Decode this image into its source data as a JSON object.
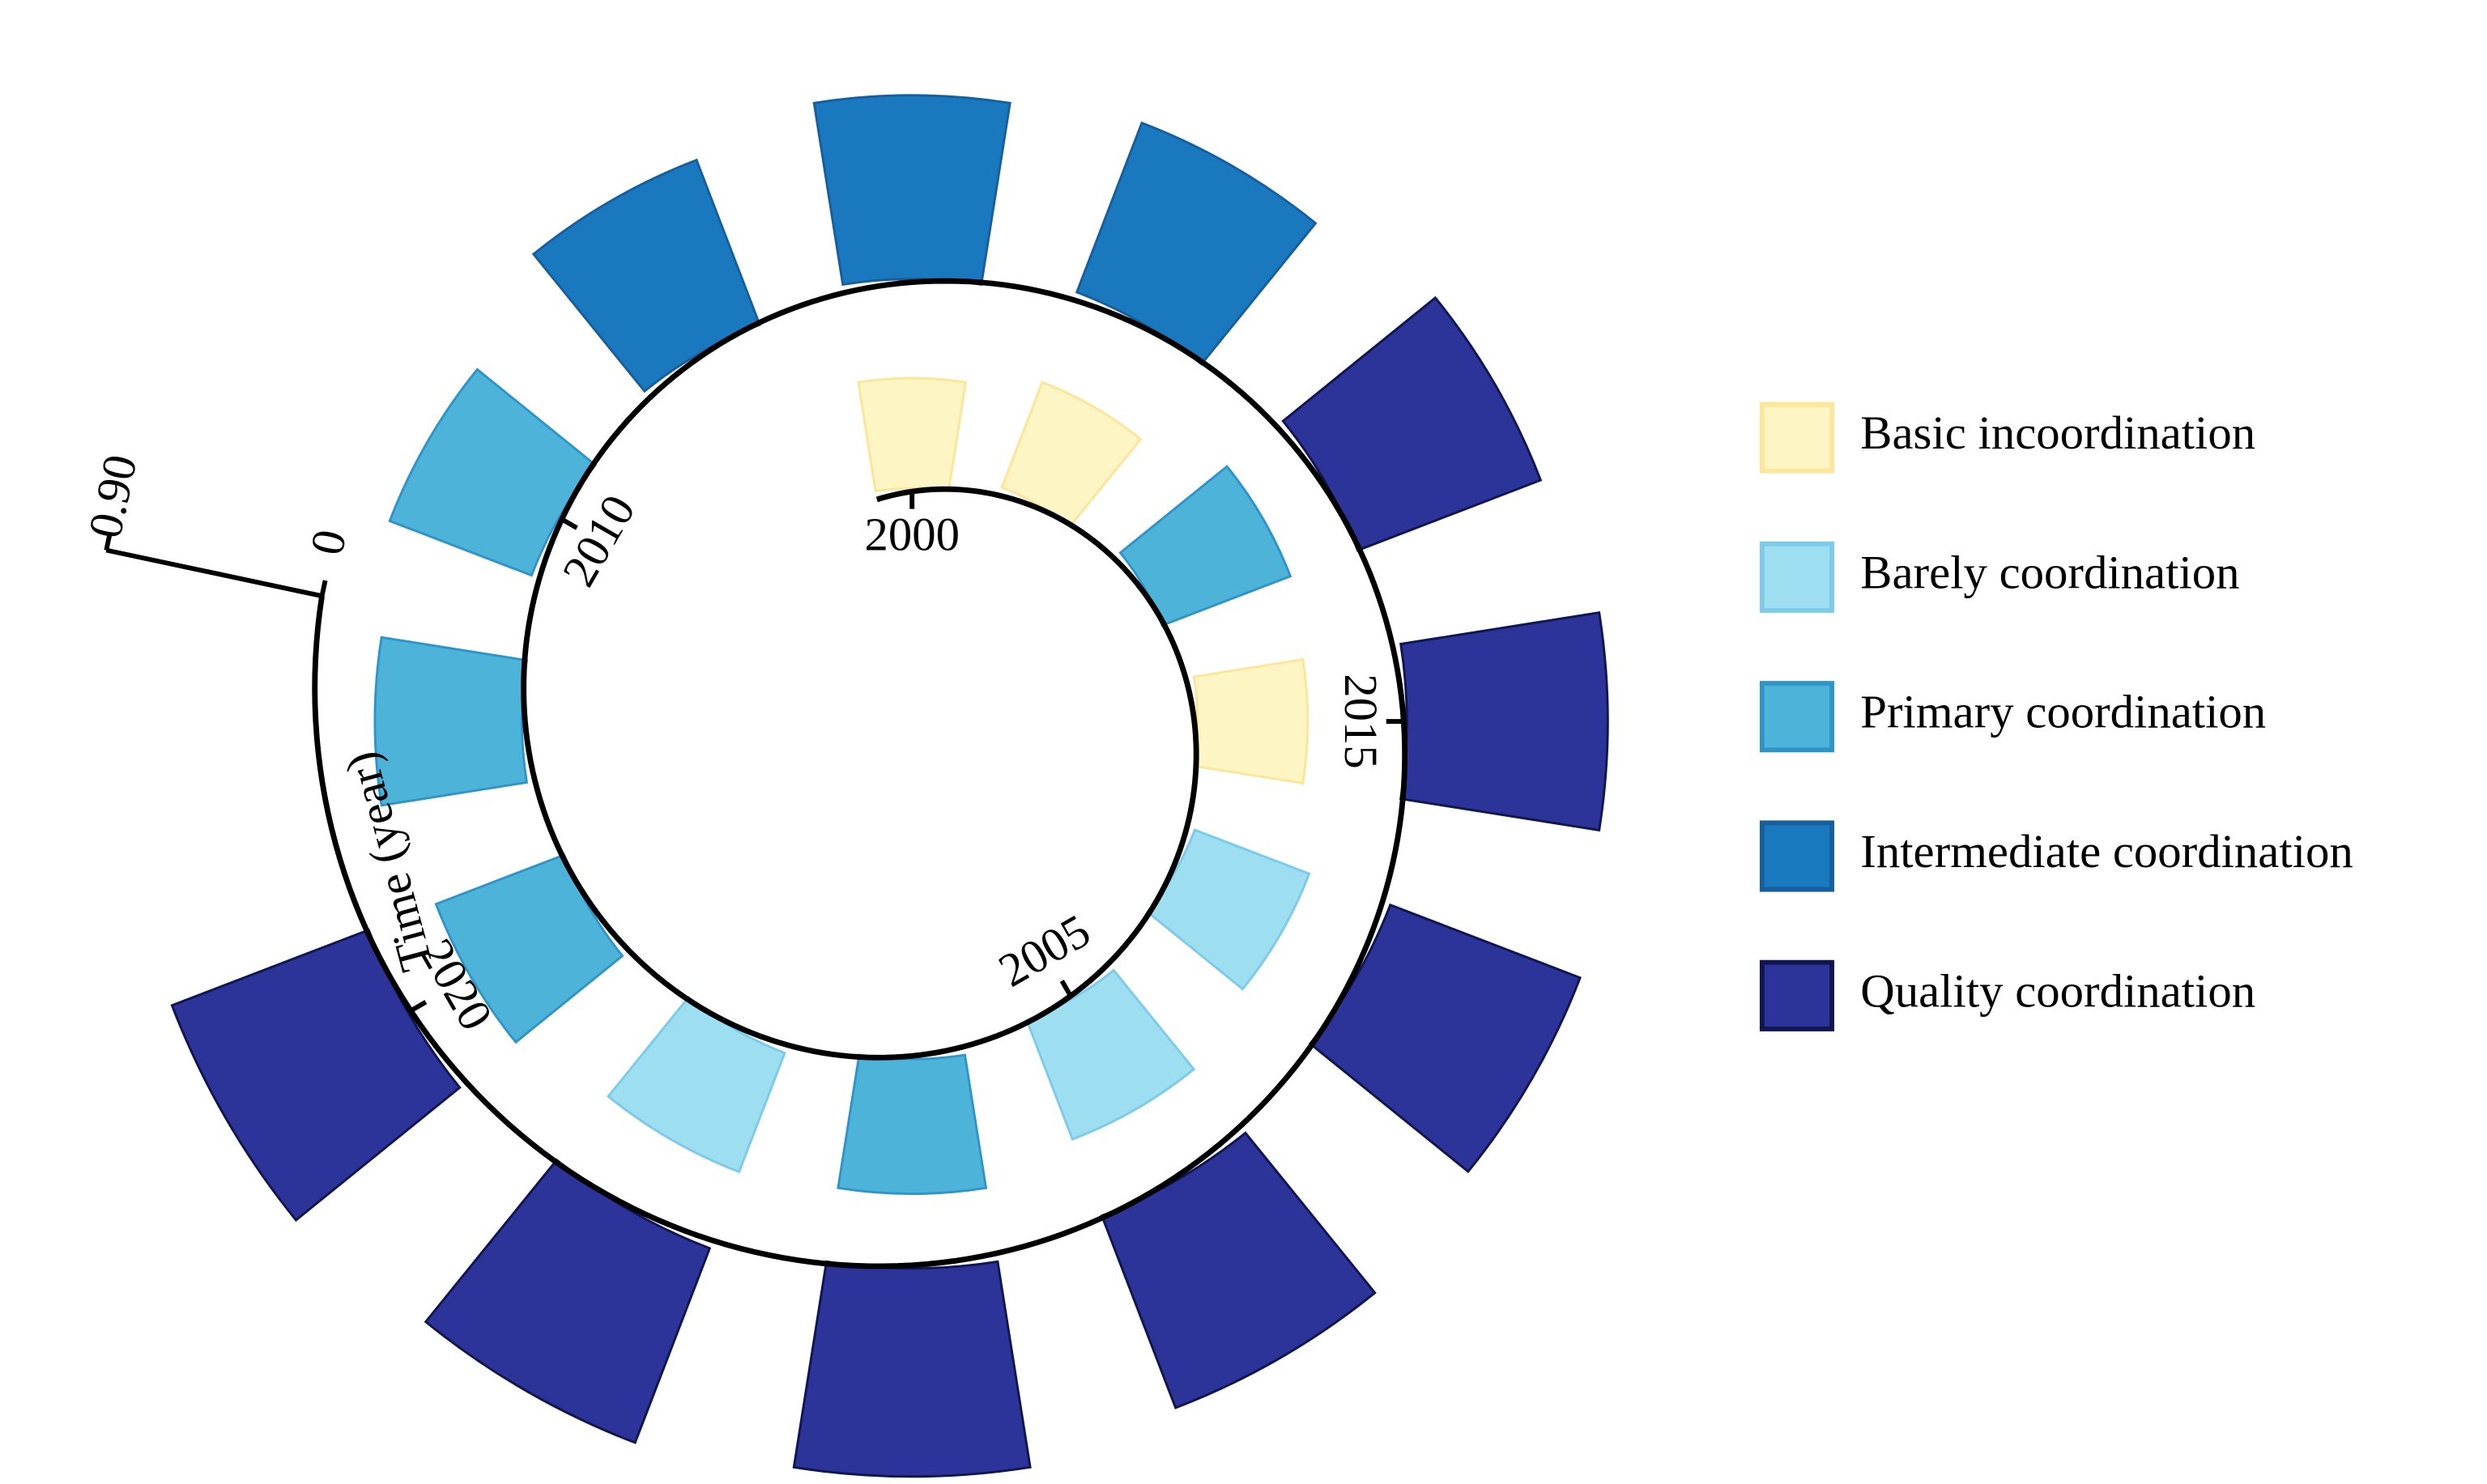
{
  "chart_data": {
    "type": "spiral-bar",
    "x": [
      2000,
      2001,
      2002,
      2003,
      2004,
      2005,
      2006,
      2007,
      2008,
      2009,
      2010,
      2011,
      2012,
      2013,
      2014,
      2015,
      2016,
      2017,
      2018,
      2019,
      2020
    ],
    "xticks": [
      2000,
      2005,
      2010,
      2015,
      2020
    ],
    "x_label": "Time (year)",
    "rlim": [
      0,
      0.9
    ],
    "rticks": [
      0,
      {
        "value": 0.9,
        "label": "0.90"
      }
    ],
    "series": [
      {
        "name": "Basic incoordination",
        "color": "#fdf5c4",
        "stroke": "#fde69a",
        "values": [
          0.45,
          0.46,
          null,
          0.45,
          null,
          null,
          null,
          null,
          null,
          null,
          null,
          null,
          null,
          null,
          null,
          null,
          null,
          null,
          null,
          null,
          null
        ]
      },
      {
        "name": "Barely coordination",
        "color": "#9ddff0",
        "stroke": "#7ccbea",
        "values": [
          null,
          null,
          null,
          null,
          0.5,
          0.52,
          null,
          0.52,
          null,
          null,
          null,
          null,
          null,
          null,
          null,
          null,
          null,
          null,
          null,
          null,
          null
        ]
      },
      {
        "name": "Primary coordination",
        "color": "#4eb3d9",
        "stroke": "#2f95c8",
        "values": [
          null,
          null,
          0.56,
          null,
          null,
          null,
          0.55,
          null,
          0.56,
          0.6,
          0.62,
          null,
          null,
          null,
          null,
          null,
          null,
          null,
          null,
          null,
          null
        ]
      },
      {
        "name": "Intermediate coordination",
        "color": "#1a79be",
        "stroke": "#155f9e",
        "values": [
          null,
          null,
          null,
          null,
          null,
          null,
          null,
          null,
          null,
          null,
          null,
          0.72,
          0.75,
          0.74,
          null,
          null,
          null,
          null,
          null,
          null,
          null
        ]
      },
      {
        "name": "Quality coordination",
        "color": "#2c3399",
        "stroke": "#10164f",
        "values": [
          null,
          null,
          null,
          null,
          null,
          null,
          null,
          null,
          null,
          null,
          null,
          null,
          null,
          null,
          0.8,
          0.82,
          0.83,
          0.84,
          0.85,
          0.85,
          0.86
        ]
      }
    ]
  }
}
